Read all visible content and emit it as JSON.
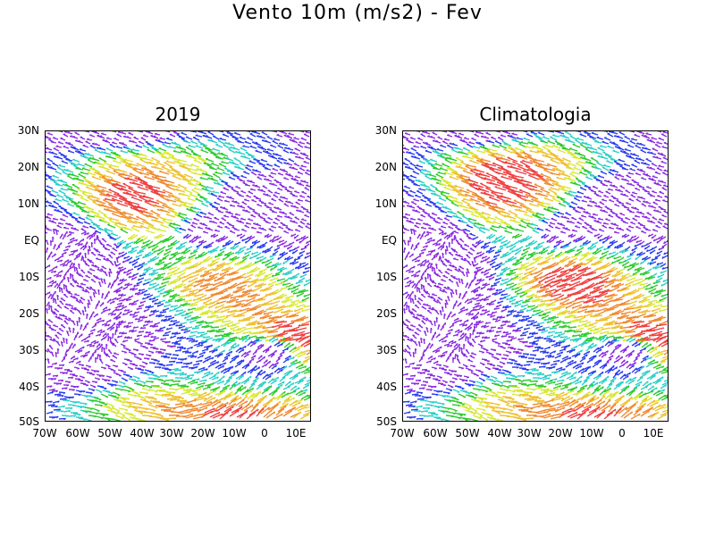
{
  "title": "Vento 10m (m/s2) - Fev",
  "panels": [
    {
      "title": "2019"
    },
    {
      "title": "Climatologia"
    }
  ],
  "lat_labels": [
    "30N",
    "20N",
    "10N",
    "EQ",
    "10S",
    "20S",
    "30S",
    "40S",
    "50S"
  ],
  "lon_labels": [
    "70W",
    "60W",
    "50W",
    "40W",
    "30W",
    "20W",
    "10W",
    "0",
    "10E"
  ],
  "colors": [
    "#8a2be2",
    "#2a3cf0",
    "#2ad0c8",
    "#2dcc2d",
    "#d8e830",
    "#f0c030",
    "#f08a30",
    "#f04040"
  ]
}
